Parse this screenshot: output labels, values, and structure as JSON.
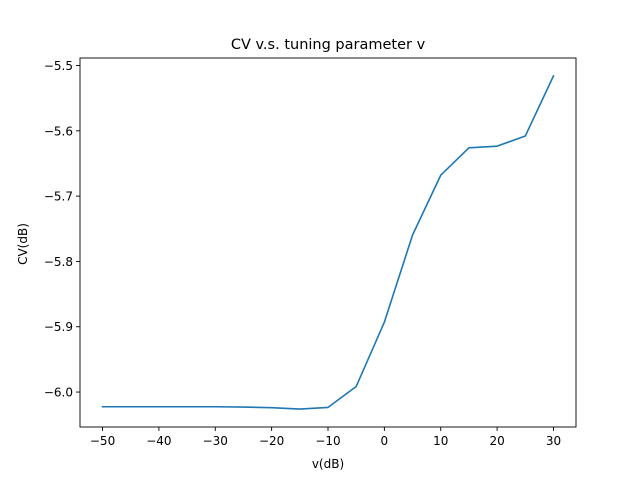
{
  "chart_data": {
    "type": "line",
    "title": "CV v.s. tuning parameter v",
    "xlabel": "v(dB)",
    "ylabel": "CV(dB)",
    "xlim": [
      -54,
      34
    ],
    "ylim": [
      -6.0535,
      -5.4885
    ],
    "xticks": [
      -50,
      -40,
      -30,
      -20,
      -10,
      0,
      10,
      20,
      30
    ],
    "yticks": [
      -6.0,
      -5.9,
      -5.8,
      -5.7,
      -5.6,
      -5.5
    ],
    "ytick_labels": [
      "−6.0",
      "−5.9",
      "−5.8",
      "−5.7",
      "−5.6",
      "−5.5"
    ],
    "xtick_labels": [
      "−50",
      "−40",
      "−30",
      "−20",
      "−10",
      "0",
      "10",
      "20",
      "30"
    ],
    "grid": false,
    "series": [
      {
        "color": "#1f77b4",
        "x": [
          -50,
          -45,
          -40,
          -35,
          -30,
          -25,
          -20,
          -15,
          -10,
          -5,
          0,
          5,
          10,
          15,
          20,
          25,
          30
        ],
        "y": [
          -6.0225,
          -6.0225,
          -6.0225,
          -6.0225,
          -6.0225,
          -6.023,
          -6.024,
          -6.026,
          -6.0235,
          -5.9915,
          -5.893,
          -5.7595,
          -5.668,
          -5.626,
          -5.6235,
          -5.608,
          -5.516
        ]
      }
    ]
  }
}
